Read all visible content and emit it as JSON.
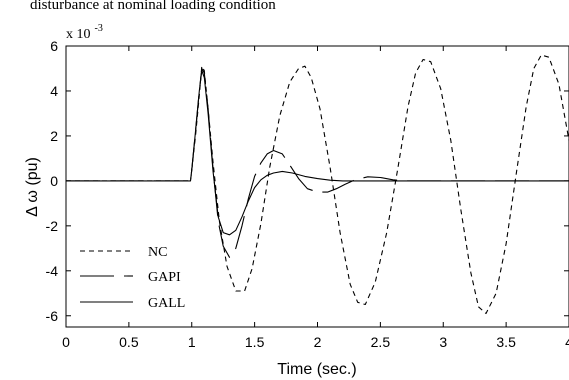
{
  "caption": "disturbance at nominal loading condition",
  "chart_data": {
    "type": "line",
    "xlabel": "Time (sec.)",
    "ylabel": "Δ ω (pu)",
    "y_multiplier": "x 10",
    "y_multiplier_exp": "-3",
    "xlim": [
      0,
      4
    ],
    "ylim": [
      -6.5,
      6
    ],
    "x_ticks": [
      0,
      0.5,
      1,
      1.5,
      2,
      2.5,
      3,
      3.5,
      4
    ],
    "x_tick_labels": [
      "0",
      "0.5",
      "1",
      "1.5",
      "2",
      "2.5",
      "3",
      "3.5",
      "4"
    ],
    "y_ticks": [
      -6,
      -4,
      -2,
      0,
      2,
      4,
      6
    ],
    "y_tick_labels": [
      "-6",
      "-4",
      "-2",
      "0",
      "2",
      "4",
      "6"
    ],
    "grid": false,
    "legend_position": "bottom-left",
    "series": [
      {
        "name": "NC",
        "style": "dashed",
        "x": [
          0,
          0.99,
          1.0,
          1.03,
          1.06,
          1.08,
          1.1,
          1.13,
          1.17,
          1.22,
          1.28,
          1.35,
          1.42,
          1.48,
          1.55,
          1.62,
          1.7,
          1.78,
          1.85,
          1.9,
          1.95,
          2.02,
          2.1,
          2.18,
          2.26,
          2.32,
          2.38,
          2.46,
          2.55,
          2.64,
          2.72,
          2.78,
          2.84,
          2.9,
          2.98,
          3.06,
          3.14,
          3.22,
          3.28,
          3.34,
          3.42,
          3.5,
          3.58,
          3.66,
          3.72,
          3.78,
          3.84,
          3.92,
          4.0
        ],
        "y": [
          0,
          0,
          0.5,
          2.0,
          3.8,
          5.1,
          4.9,
          3.2,
          0.8,
          -1.8,
          -3.8,
          -4.9,
          -4.9,
          -3.9,
          -1.9,
          0.6,
          2.9,
          4.4,
          5.0,
          5.1,
          4.6,
          3.2,
          0.6,
          -2.3,
          -4.6,
          -5.4,
          -5.5,
          -4.5,
          -2.3,
          0.6,
          3.3,
          4.8,
          5.4,
          5.3,
          4.1,
          1.8,
          -1.3,
          -4.1,
          -5.6,
          -5.9,
          -5.0,
          -2.8,
          0.3,
          3.3,
          5.0,
          5.6,
          5.5,
          4.3,
          1.8
        ]
      },
      {
        "name": "GAPI",
        "style": "long-dash",
        "x": [
          0,
          0.99,
          1.0,
          1.03,
          1.06,
          1.08,
          1.1,
          1.13,
          1.17,
          1.21,
          1.25,
          1.3,
          1.35,
          1.4,
          1.45,
          1.5,
          1.55,
          1.6,
          1.65,
          1.72,
          1.78,
          1.85,
          1.92,
          2.0,
          2.08,
          2.15,
          2.22,
          2.3,
          2.4,
          2.5,
          2.6,
          2.7,
          2.8,
          3.0,
          4.0
        ],
        "y": [
          0,
          0,
          0.5,
          2.2,
          4.0,
          5.0,
          4.8,
          3.2,
          0.5,
          -1.8,
          -2.9,
          -3.4,
          -3.0,
          -2.0,
          -0.8,
          0.2,
          0.8,
          1.2,
          1.35,
          1.2,
          0.7,
          0.1,
          -0.35,
          -0.5,
          -0.5,
          -0.35,
          -0.15,
          0.05,
          0.18,
          0.15,
          0.05,
          0.0,
          0.0,
          0.0,
          0.0
        ]
      },
      {
        "name": "GALL",
        "style": "solid",
        "x": [
          0,
          0.99,
          1.0,
          1.03,
          1.06,
          1.08,
          1.1,
          1.13,
          1.17,
          1.21,
          1.25,
          1.3,
          1.35,
          1.4,
          1.45,
          1.5,
          1.55,
          1.6,
          1.65,
          1.72,
          1.8,
          1.9,
          2.0,
          2.1,
          2.2,
          2.4,
          4.0
        ],
        "y": [
          0,
          0,
          0.5,
          2.2,
          4.0,
          4.9,
          4.6,
          3.0,
          0.4,
          -1.6,
          -2.3,
          -2.4,
          -2.2,
          -1.6,
          -0.9,
          -0.3,
          0.05,
          0.25,
          0.35,
          0.42,
          0.35,
          0.2,
          0.1,
          0.03,
          0.0,
          0.0,
          0.0
        ]
      }
    ]
  }
}
